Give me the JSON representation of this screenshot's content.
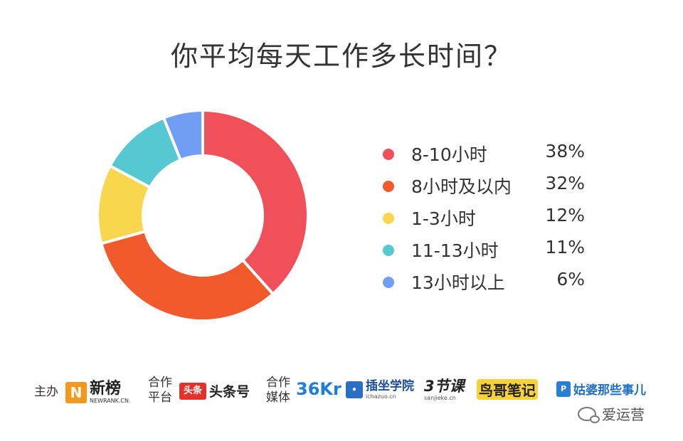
{
  "chart_data": {
    "type": "pie",
    "title": "你平均每天工作多长时间？",
    "categories": [
      "8-10小时",
      "8小时及以内",
      "1-3小时",
      "11-13小时",
      "13小时以上"
    ],
    "values": [
      38,
      32,
      12,
      11,
      6
    ],
    "value_labels": [
      "38%",
      "32%",
      "12%",
      "11%",
      "6%"
    ],
    "colors": [
      "#f0505a",
      "#f05a2c",
      "#f8d64e",
      "#56c8d2",
      "#6f9ef2"
    ],
    "legend_position": "right"
  },
  "footer": {
    "host_label": "主办",
    "host_logo": "新榜",
    "host_logo_sub": "NEWRANK.CN",
    "platform_label_1": "合作",
    "platform_label_2": "平台",
    "platform_logo_mark": "头条",
    "platform_logo": "头条号",
    "media_label_1": "合作",
    "media_label_2": "媒体",
    "media_logos": [
      "36Kr",
      "插坐学院",
      "3节课",
      "鸟哥笔记",
      "姑婆那些事儿"
    ],
    "media_logo_subs": [
      "ichazuo.cn",
      "sanjieke.cn"
    ]
  },
  "watermark": "爱运营"
}
